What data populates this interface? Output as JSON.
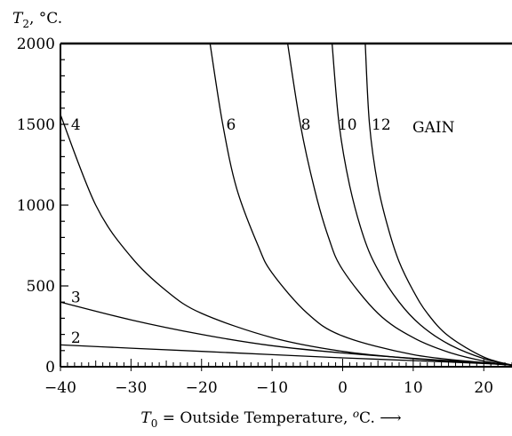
{
  "chart_data": {
    "type": "line",
    "title": "",
    "ylabel": "T₂, °C.",
    "xlabel": "T₀ = Outside Temperature, °C. ⟶",
    "xlim": [
      -40,
      24
    ],
    "ylim": [
      0,
      2000
    ],
    "x_ticks": [
      -40,
      -30,
      -20,
      -10,
      0,
      10,
      20
    ],
    "y_ticks": [
      0,
      500,
      1000,
      1500,
      2000
    ],
    "x_tick_labels": [
      "−40",
      "−30",
      "−20",
      "−10",
      "0",
      "10",
      "20"
    ],
    "y_tick_labels": [
      "0",
      "500",
      "1000",
      "1500",
      "2000"
    ],
    "gain_header": "GAIN",
    "grid": false,
    "series": [
      {
        "name": "2",
        "x": [
          -40,
          -30,
          -20,
          -10,
          0,
          10,
          20,
          24
        ],
        "y": [
          135,
          115,
          95,
          75,
          55,
          38,
          20,
          10
        ]
      },
      {
        "name": "3",
        "x": [
          -40,
          -30,
          -20,
          -10,
          0,
          10,
          20,
          24
        ],
        "y": [
          400,
          290,
          200,
          130,
          85,
          52,
          25,
          10
        ]
      },
      {
        "name": "4",
        "x": [
          -40,
          -35,
          -30,
          -25,
          -20,
          -10,
          0,
          10,
          20,
          24
        ],
        "y": [
          1560,
          1000,
          680,
          470,
          330,
          180,
          95,
          50,
          22,
          10
        ]
      },
      {
        "name": "6",
        "x": [
          -18.8,
          -17,
          -15,
          -12,
          -10,
          -5,
          0,
          10,
          20,
          24
        ],
        "y": [
          2000,
          1500,
          1100,
          750,
          580,
          330,
          190,
          75,
          25,
          10
        ]
      },
      {
        "name": "8",
        "x": [
          -7.8,
          -6,
          -4,
          -2,
          0,
          5,
          10,
          15,
          20,
          24
        ],
        "y": [
          2000,
          1500,
          1100,
          800,
          600,
          330,
          180,
          90,
          35,
          10
        ]
      },
      {
        "name": "10",
        "x": [
          -1.5,
          -0.5,
          1,
          3,
          5,
          8,
          11,
          15,
          20,
          24
        ],
        "y": [
          2000,
          1500,
          1120,
          800,
          600,
          400,
          260,
          140,
          50,
          10
        ]
      },
      {
        "name": "12",
        "x": [
          3.2,
          3.8,
          5,
          6.5,
          8,
          10,
          12,
          15,
          20,
          24
        ],
        "y": [
          2000,
          1500,
          1120,
          850,
          650,
          470,
          330,
          190,
          60,
          10
        ]
      }
    ],
    "curve_labels": [
      {
        "text": "2",
        "x": -38.5,
        "y": 180
      },
      {
        "text": "3",
        "x": -38.5,
        "y": 430
      },
      {
        "text": "4",
        "x": -38.5,
        "y": 1500
      },
      {
        "text": "6",
        "x": -16.5,
        "y": 1500
      },
      {
        "text": "8",
        "x": -5.9,
        "y": 1500
      },
      {
        "text": "10",
        "x": -0.7,
        "y": 1500
      },
      {
        "text": "12",
        "x": 4.1,
        "y": 1500
      }
    ]
  }
}
